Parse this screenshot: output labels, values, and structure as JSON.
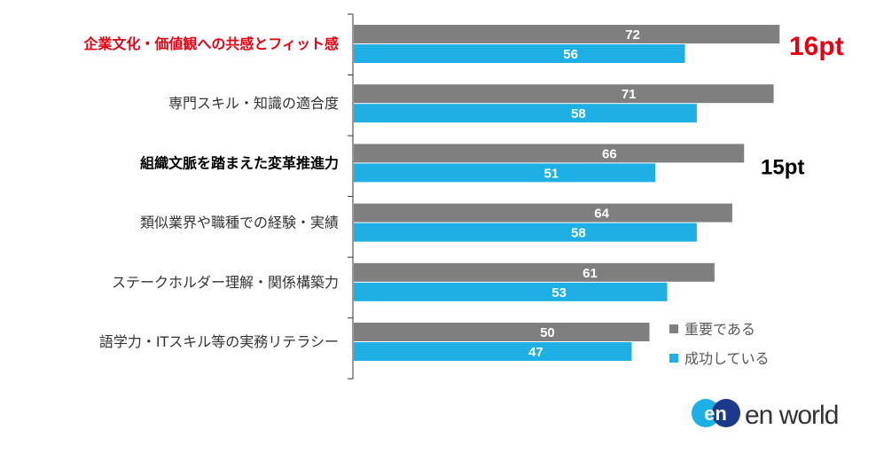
{
  "chart_data": {
    "type": "bar",
    "orientation": "horizontal",
    "categories": [
      "企業文化・価値観への共感とフィット感",
      "専門スキル・知識の適合度",
      "組織文脈を踏まえた変革推進力",
      "類似業界や職種での経験・実績",
      "ステークホルダー理解・関係構築力",
      "語学力・ITスキル等の実務リテラシー"
    ],
    "category_styles": [
      "red",
      "normal",
      "bold",
      "normal",
      "normal",
      "normal"
    ],
    "series": [
      {
        "name": "重要である",
        "color": "#7f7f7f",
        "values": [
          72,
          71,
          66,
          64,
          61,
          50
        ]
      },
      {
        "name": "成功している",
        "color": "#1eb0e4",
        "values": [
          56,
          58,
          51,
          58,
          53,
          47
        ]
      }
    ],
    "xlim": [
      0,
      80
    ],
    "grid": false,
    "legend_position": "bottom-right",
    "annotations": [
      {
        "text": "16pt",
        "category_index": 0,
        "color": "#e60012"
      },
      {
        "text": "15pt",
        "category_index": 2,
        "color": "#000000"
      }
    ]
  },
  "logo": {
    "mark": "en",
    "text": "en world",
    "colors": [
      "#1eb0e4",
      "#1b3a8c"
    ]
  }
}
